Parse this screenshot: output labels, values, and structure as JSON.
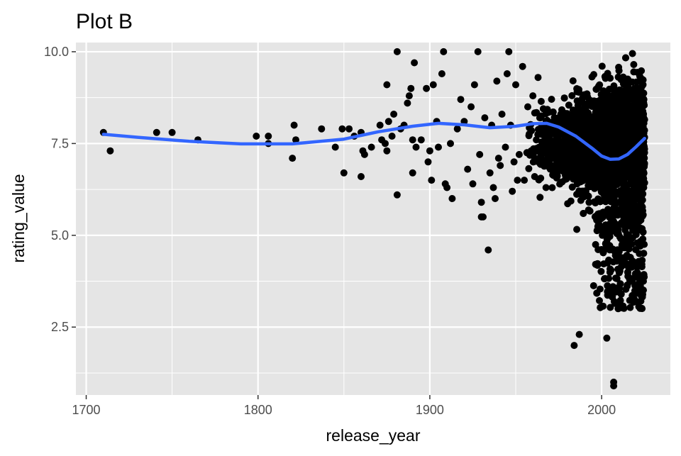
{
  "chart_data": {
    "type": "scatter",
    "title": "Plot B",
    "xlabel": "release_year",
    "ylabel": "rating_value",
    "xlim": [
      1694,
      2040
    ],
    "ylim": [
      0.65,
      10.25
    ],
    "x_ticks": [
      1700,
      1800,
      1900,
      2000
    ],
    "x_tick_labels": [
      "1700",
      "1800",
      "1900",
      "2000"
    ],
    "y_ticks": [
      2.5,
      5.0,
      7.5,
      10.0
    ],
    "y_tick_labels": [
      "2.5",
      "5.0",
      "7.5",
      "10.0"
    ],
    "grid": true,
    "legend": "none",
    "colors": {
      "panel": "#e5e5e5",
      "grid": "#ffffff",
      "points": "#000000",
      "smooth": "#3366ff"
    },
    "points": [
      [
        1710,
        7.8
      ],
      [
        1714,
        7.3
      ],
      [
        1741,
        7.8
      ],
      [
        1750,
        7.8
      ],
      [
        1765,
        7.6
      ],
      [
        1799,
        7.7
      ],
      [
        1806,
        7.7
      ],
      [
        1806,
        7.5
      ],
      [
        1820,
        7.1
      ],
      [
        1821,
        8.0
      ],
      [
        1822,
        7.6
      ],
      [
        1837,
        7.9
      ],
      [
        1845,
        7.4
      ],
      [
        1849,
        7.9
      ],
      [
        1850,
        6.7
      ],
      [
        1853,
        7.9
      ],
      [
        1856,
        7.7
      ],
      [
        1860,
        7.8
      ],
      [
        1860,
        6.6
      ],
      [
        1861,
        7.3
      ],
      [
        1862,
        7.2
      ],
      [
        1866,
        7.4
      ],
      [
        1871,
        8.0
      ],
      [
        1872,
        7.6
      ],
      [
        1874,
        7.5
      ],
      [
        1875,
        7.3
      ],
      [
        1875,
        9.1
      ],
      [
        1876,
        8.1
      ],
      [
        1878,
        7.7
      ],
      [
        1879,
        8.3
      ],
      [
        1881,
        10.0
      ],
      [
        1881,
        6.1
      ],
      [
        1883,
        7.9
      ],
      [
        1885,
        8.0
      ],
      [
        1887,
        8.6
      ],
      [
        1888,
        8.8
      ],
      [
        1889,
        9.0
      ],
      [
        1890,
        7.6
      ],
      [
        1890,
        6.7
      ],
      [
        1891,
        9.7
      ],
      [
        1892,
        7.4
      ],
      [
        1895,
        7.6
      ],
      [
        1898,
        9.0
      ],
      [
        1899,
        7.0
      ],
      [
        1900,
        7.3
      ],
      [
        1901,
        6.5
      ],
      [
        1902,
        9.1
      ],
      [
        1904,
        8.1
      ],
      [
        1905,
        7.4
      ],
      [
        1907,
        9.4
      ],
      [
        1908,
        10.0
      ],
      [
        1909,
        6.4
      ],
      [
        1910,
        6.3
      ],
      [
        1912,
        7.5
      ],
      [
        1913,
        6.0
      ],
      [
        1916,
        7.9
      ],
      [
        1918,
        8.7
      ],
      [
        1920,
        8.1
      ],
      [
        1922,
        6.8
      ],
      [
        1924,
        8.5
      ],
      [
        1925,
        6.4
      ],
      [
        1926,
        9.1
      ],
      [
        1928,
        10.0
      ],
      [
        1929,
        7.2
      ],
      [
        1930,
        5.5
      ],
      [
        1930,
        5.9
      ],
      [
        1931,
        5.5
      ],
      [
        1932,
        8.2
      ],
      [
        1934,
        4.6
      ],
      [
        1935,
        6.7
      ],
      [
        1936,
        8.0
      ],
      [
        1937,
        6.3
      ],
      [
        1938,
        6.0
      ],
      [
        1939,
        9.2
      ],
      [
        1940,
        7.1
      ],
      [
        1941,
        6.9
      ],
      [
        1942,
        8.3
      ],
      [
        1944,
        7.4
      ],
      [
        1945,
        9.4
      ],
      [
        1946,
        10.0
      ],
      [
        1947,
        8.0
      ],
      [
        1948,
        6.2
      ],
      [
        1949,
        7.0
      ],
      [
        1950,
        9.1
      ],
      [
        1951,
        6.5
      ],
      [
        1952,
        7.2
      ],
      [
        1954,
        9.6
      ],
      [
        1955,
        6.5
      ],
      [
        1957,
        8.5
      ],
      [
        1959,
        7.3
      ],
      [
        1960,
        8.8
      ],
      [
        1961,
        6.6
      ],
      [
        1962,
        7.6
      ],
      [
        1963,
        9.3
      ],
      [
        1964,
        8.2
      ]
    ],
    "dense_region": {
      "x_range": [
        1955,
        2025
      ],
      "y_range": [
        2.2,
        10.0
      ],
      "count": 2600,
      "extremes": [
        [
          1984,
          2.0
        ],
        [
          1987,
          2.3
        ],
        [
          2003,
          2.2
        ],
        [
          2007,
          1.0
        ],
        [
          2007,
          0.9
        ]
      ]
    },
    "smooth_line": {
      "x": [
        1710,
        1730,
        1760,
        1790,
        1820,
        1850,
        1870,
        1890,
        1905,
        1920,
        1935,
        1950,
        1960,
        1968,
        1975,
        1985,
        1995,
        2000,
        2005,
        2010,
        2015,
        2020,
        2025
      ],
      "y": [
        7.75,
        7.67,
        7.56,
        7.49,
        7.49,
        7.62,
        7.82,
        7.97,
        8.05,
        8.01,
        7.93,
        7.97,
        8.04,
        8.05,
        7.95,
        7.7,
        7.35,
        7.16,
        7.07,
        7.08,
        7.2,
        7.41,
        7.64
      ]
    }
  }
}
